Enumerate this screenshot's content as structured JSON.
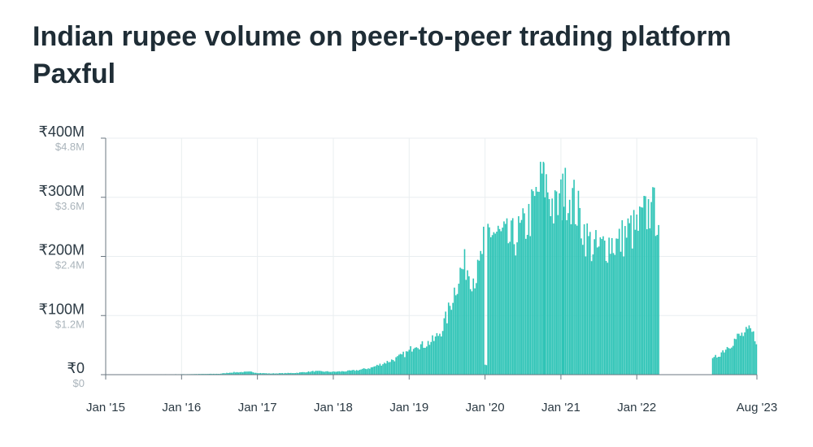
{
  "title": "Indian rupee volume on peer-to-peer trading platform Paxful",
  "colors": {
    "bar": "#2ec4b6",
    "grid": "#e9eef0",
    "axis": "#6b7780"
  },
  "chart_data": {
    "type": "bar",
    "title": "Indian rupee volume on peer-to-peer trading platform Paxful",
    "xlabel": "",
    "ylabel": "",
    "x_range": [
      "2015-01",
      "2023-08"
    ],
    "ylim": [
      0,
      400
    ],
    "y_unit": "₹ millions",
    "y_ticks": [
      {
        "value": 0,
        "label": "₹0",
        "secondary": "$0"
      },
      {
        "value": 100,
        "label": "₹100M",
        "secondary": "$1.2M"
      },
      {
        "value": 200,
        "label": "₹200M",
        "secondary": "$2.4M"
      },
      {
        "value": 300,
        "label": "₹300M",
        "secondary": "$3.6M"
      },
      {
        "value": 400,
        "label": "₹400M",
        "secondary": "$4.8M"
      }
    ],
    "x_ticks": [
      {
        "date": "2015-01",
        "label": "Jan '15"
      },
      {
        "date": "2016-01",
        "label": "Jan '16"
      },
      {
        "date": "2017-01",
        "label": "Jan '17"
      },
      {
        "date": "2018-01",
        "label": "Jan '18"
      },
      {
        "date": "2019-01",
        "label": "Jan '19"
      },
      {
        "date": "2020-01",
        "label": "Jan '20"
      },
      {
        "date": "2021-01",
        "label": "Jan '21"
      },
      {
        "date": "2022-01",
        "label": "Jan '22"
      },
      {
        "date": "2023-08",
        "label": "Aug '23"
      }
    ],
    "grid": true,
    "bar_interval": "weekly",
    "monthly_levels": [
      [
        "2015-01",
        0.5
      ],
      [
        "2015-07",
        0.5
      ],
      [
        "2016-01",
        0.8
      ],
      [
        "2016-07",
        1.5
      ],
      [
        "2016-09",
        4
      ],
      [
        "2016-12",
        5
      ],
      [
        "2017-01",
        3
      ],
      [
        "2017-03",
        2
      ],
      [
        "2017-07",
        3
      ],
      [
        "2017-10",
        6
      ],
      [
        "2018-01",
        5
      ],
      [
        "2018-03",
        6
      ],
      [
        "2018-05",
        8
      ],
      [
        "2018-07",
        12
      ],
      [
        "2018-09",
        20
      ],
      [
        "2018-11",
        28
      ],
      [
        "2019-01",
        40
      ],
      [
        "2019-02",
        55
      ],
      [
        "2019-03",
        50
      ],
      [
        "2019-04",
        55
      ],
      [
        "2019-05",
        60
      ],
      [
        "2019-06",
        75
      ],
      [
        "2019-07",
        100
      ],
      [
        "2019-08",
        140
      ],
      [
        "2019-09",
        175
      ],
      [
        "2019-10",
        190
      ],
      [
        "2019-11",
        170
      ],
      [
        "2019-12",
        175
      ],
      [
        "2020-01",
        245
      ],
      [
        "2020-02",
        250
      ],
      [
        "2020-03",
        240
      ],
      [
        "2020-04",
        235
      ],
      [
        "2020-05",
        230
      ],
      [
        "2020-06",
        240
      ],
      [
        "2020-07",
        250
      ],
      [
        "2020-08",
        270
      ],
      [
        "2020-09",
        300
      ],
      [
        "2020-10",
        340
      ],
      [
        "2020-11",
        320
      ],
      [
        "2020-12",
        280
      ],
      [
        "2021-01",
        300
      ],
      [
        "2021-02",
        320
      ],
      [
        "2021-03",
        300
      ],
      [
        "2021-04",
        270
      ],
      [
        "2021-05",
        240
      ],
      [
        "2021-06",
        220
      ],
      [
        "2021-07",
        215
      ],
      [
        "2021-08",
        225
      ],
      [
        "2021-09",
        230
      ],
      [
        "2021-10",
        225
      ],
      [
        "2021-11",
        240
      ],
      [
        "2021-12",
        250
      ],
      [
        "2022-01",
        250
      ],
      [
        "2022-02",
        270
      ],
      [
        "2022-03",
        285
      ],
      [
        "2022-04",
        280
      ]
    ],
    "tail_levels": [
      [
        "2023-01",
        25
      ],
      [
        "2023-03",
        45
      ],
      [
        "2023-05",
        65
      ],
      [
        "2023-07",
        75
      ],
      [
        "2023-08",
        60
      ]
    ]
  }
}
